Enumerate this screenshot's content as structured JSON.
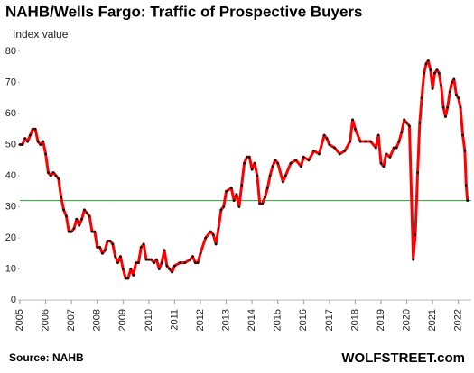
{
  "chart_data": {
    "type": "line",
    "title": "NAHB/Wells Fargo: Traffic of Prospective Buyers",
    "y_label": "Index value",
    "source": "Source: NAHB",
    "brand": "WOLFSTREET.com",
    "xlim": [
      2005,
      2022.5
    ],
    "xticks": [
      2005,
      2006,
      2007,
      2008,
      2009,
      2010,
      2011,
      2012,
      2013,
      2014,
      2015,
      2016,
      2017,
      2018,
      2019,
      2020,
      2021,
      2022
    ],
    "ylim": [
      0,
      80
    ],
    "yticks": [
      0,
      10,
      20,
      30,
      40,
      50,
      60,
      70,
      80
    ],
    "reference_line": {
      "value": 32,
      "color": "#2e9a3a"
    },
    "series": [
      {
        "name": "Traffic of Prospective Buyers",
        "color": "#ff0000",
        "marker_color": "#111111",
        "x": [
          2005.0,
          2005.1,
          2005.2,
          2005.3,
          2005.4,
          2005.5,
          2005.6,
          2005.7,
          2005.8,
          2005.9,
          2006.0,
          2006.1,
          2006.2,
          2006.3,
          2006.4,
          2006.5,
          2006.6,
          2006.7,
          2006.8,
          2006.9,
          2007.0,
          2007.1,
          2007.2,
          2007.3,
          2007.4,
          2007.5,
          2007.6,
          2007.7,
          2007.8,
          2007.9,
          2008.0,
          2008.1,
          2008.2,
          2008.3,
          2008.4,
          2008.5,
          2008.6,
          2008.7,
          2008.8,
          2008.9,
          2009.0,
          2009.1,
          2009.2,
          2009.3,
          2009.4,
          2009.5,
          2009.6,
          2009.7,
          2009.8,
          2009.9,
          2010.0,
          2010.1,
          2010.2,
          2010.3,
          2010.4,
          2010.5,
          2010.6,
          2010.7,
          2010.8,
          2010.9,
          2011.0,
          2011.2,
          2011.4,
          2011.6,
          2011.7,
          2011.8,
          2011.9,
          2012.0,
          2012.2,
          2012.4,
          2012.5,
          2012.6,
          2012.7,
          2012.8,
          2012.9,
          2013.0,
          2013.2,
          2013.3,
          2013.4,
          2013.5,
          2013.6,
          2013.7,
          2013.8,
          2013.9,
          2014.0,
          2014.1,
          2014.2,
          2014.3,
          2014.4,
          2014.5,
          2014.6,
          2014.7,
          2014.8,
          2014.9,
          2015.0,
          2015.2,
          2015.3,
          2015.5,
          2015.7,
          2015.9,
          2016.0,
          2016.2,
          2016.4,
          2016.6,
          2016.8,
          2016.9,
          2017.0,
          2017.2,
          2017.4,
          2017.6,
          2017.8,
          2017.9,
          2018.0,
          2018.2,
          2018.4,
          2018.6,
          2018.8,
          2018.9,
          2019.0,
          2019.1,
          2019.2,
          2019.35,
          2019.5,
          2019.6,
          2019.7,
          2019.8,
          2019.9,
          2020.0,
          2020.1,
          2020.25,
          2020.33,
          2020.42,
          2020.5,
          2020.58,
          2020.67,
          2020.75,
          2020.83,
          2020.92,
          2021.0,
          2021.08,
          2021.17,
          2021.25,
          2021.33,
          2021.42,
          2021.5,
          2021.58,
          2021.67,
          2021.75,
          2021.83,
          2021.92,
          2022.0,
          2022.08,
          2022.17,
          2022.25,
          2022.3,
          2022.35
        ],
        "values": [
          50,
          50,
          52,
          51,
          53,
          55,
          55,
          51,
          50,
          51,
          47,
          41,
          40,
          41,
          40,
          39,
          33,
          29,
          27,
          22,
          22,
          23,
          26,
          24,
          26,
          29,
          28,
          27,
          22,
          22,
          17,
          17,
          15,
          16,
          19,
          19,
          18,
          14,
          12,
          14,
          10,
          7,
          7,
          10,
          8,
          12,
          12,
          17,
          18,
          13,
          13,
          13,
          12,
          13,
          10,
          12,
          16,
          11,
          10,
          9,
          11,
          12,
          12,
          13,
          14,
          12,
          12,
          15,
          20,
          22,
          21,
          18,
          23,
          29,
          30,
          35,
          36,
          32,
          34,
          30,
          37,
          44,
          46,
          46,
          42,
          44,
          40,
          31,
          31,
          33,
          36,
          40,
          43,
          45,
          44,
          38,
          40,
          44,
          45,
          43,
          46,
          45,
          48,
          47,
          53,
          52,
          50,
          49,
          47,
          48,
          51,
          58,
          55,
          51,
          51,
          51,
          49,
          53,
          44,
          43,
          47,
          46,
          49,
          49,
          51,
          54,
          58,
          57,
          56,
          13,
          21,
          41,
          57,
          65,
          73,
          76,
          77,
          74,
          68,
          73,
          74,
          73,
          69,
          62,
          59,
          62,
          67,
          70,
          71,
          66,
          65,
          62,
          53,
          48,
          37,
          32
        ]
      }
    ]
  }
}
